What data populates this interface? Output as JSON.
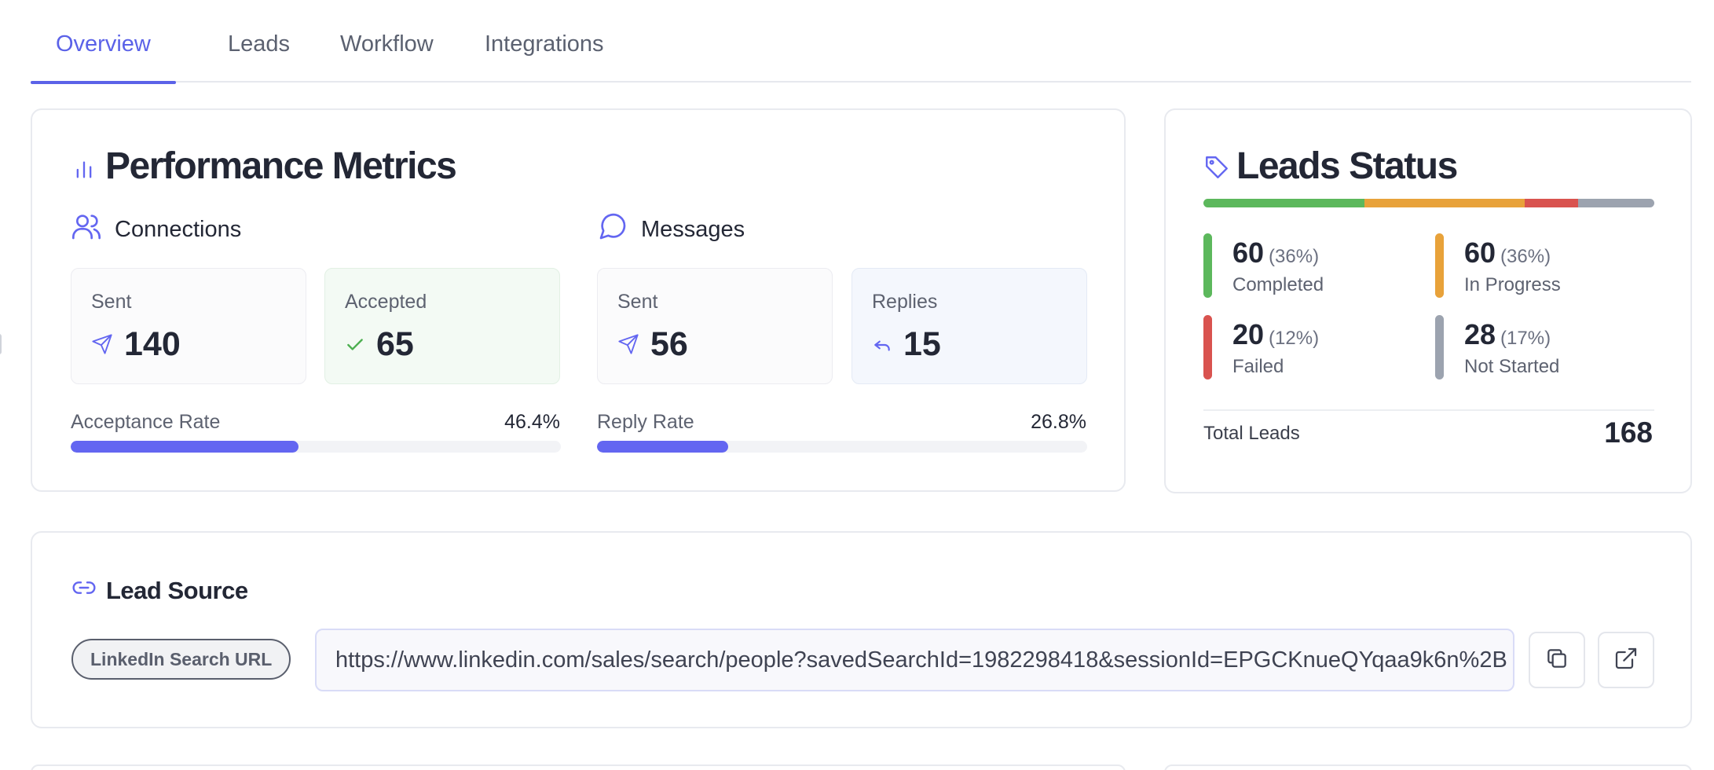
{
  "tabs": [
    {
      "label": "Overview",
      "active": true
    },
    {
      "label": "Leads",
      "active": false
    },
    {
      "label": "Workflow",
      "active": false
    },
    {
      "label": "Integrations",
      "active": false
    }
  ],
  "performance": {
    "title": "Performance Metrics",
    "title_icon": "bar-chart-icon",
    "connections": {
      "label": "Connections",
      "icon": "users-icon",
      "sent": {
        "label": "Sent",
        "value": "140",
        "icon": "send-icon"
      },
      "accepted": {
        "label": "Accepted",
        "value": "65",
        "icon": "check-icon"
      },
      "rate": {
        "label": "Acceptance Rate",
        "value": "46.4%",
        "fraction": 0.464
      }
    },
    "messages": {
      "label": "Messages",
      "icon": "message-circle-icon",
      "sent": {
        "label": "Sent",
        "value": "56",
        "icon": "send-icon"
      },
      "replies": {
        "label": "Replies",
        "value": "15",
        "icon": "reply-icon"
      },
      "rate": {
        "label": "Reply Rate",
        "value": "26.8%",
        "fraction": 0.268
      }
    }
  },
  "leads_status": {
    "title": "Leads Status",
    "title_icon": "tag-icon",
    "items": [
      {
        "count": "60",
        "percent": "(36%)",
        "label": "Completed",
        "color": "#5cb85c",
        "share": 0.36
      },
      {
        "count": "60",
        "percent": "(36%)",
        "label": "In Progress",
        "color": "#e8a23a",
        "share": 0.36
      },
      {
        "count": "20",
        "percent": "(12%)",
        "label": "Failed",
        "color": "#d9534f",
        "share": 0.12
      },
      {
        "count": "28",
        "percent": "(17%)",
        "label": "Not Started",
        "color": "#9ca3af",
        "share": 0.17
      }
    ],
    "total_label": "Total Leads",
    "total_value": "168"
  },
  "lead_source": {
    "title": "Lead Source",
    "title_icon": "link-icon",
    "badge": "LinkedIn Search URL",
    "url": "https://www.linkedin.com/sales/search/people?savedSearchId=1982298418&sessionId=EPGCKnueQYqaa9k6n%2B",
    "copy_icon": "copy-icon",
    "open_icon": "external-link-icon"
  },
  "colors": {
    "accent": "#6366f1"
  }
}
